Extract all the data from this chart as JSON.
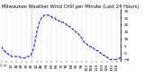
{
  "title": "Milwaukee Weather Wind Chill per Minute (Last 24 Hours)",
  "line_color": "#0000FF",
  "background_color": "#ffffff",
  "y_values": [
    5,
    4,
    3,
    2,
    2,
    1,
    1,
    0,
    0,
    -1,
    -1,
    -1,
    -2,
    -2,
    -2,
    -2,
    -2,
    -2,
    -2,
    -2,
    -2,
    -2,
    -2,
    -3,
    -3,
    -3,
    -3,
    -3,
    -3,
    -3,
    -2,
    -2,
    -2,
    -2,
    -2,
    -1,
    0,
    1,
    3,
    5,
    8,
    11,
    14,
    17,
    19,
    21,
    23,
    24,
    25,
    26,
    26,
    27,
    27,
    27,
    27,
    27,
    27,
    27,
    26,
    26,
    26,
    25,
    25,
    25,
    25,
    24,
    24,
    24,
    23,
    23,
    23,
    22,
    22,
    22,
    22,
    21,
    21,
    21,
    20,
    20,
    20,
    19,
    19,
    18,
    18,
    17,
    17,
    16,
    16,
    15,
    15,
    14,
    14,
    13,
    12,
    12,
    11,
    10,
    9,
    8,
    8,
    7,
    7,
    6,
    6,
    5,
    5,
    5,
    4,
    4,
    4,
    3,
    3,
    3,
    2,
    2,
    2,
    1,
    1,
    0,
    0,
    -1,
    -1,
    -1,
    -2,
    -2,
    -2,
    -3,
    -3,
    -4,
    -4,
    -4,
    -4,
    -4,
    -4,
    -4,
    -4,
    -4,
    -4,
    -4,
    -4,
    -3,
    -3,
    -2
  ],
  "ylim": [
    -5,
    31
  ],
  "yticks": [
    30,
    25,
    20,
    15,
    10,
    5,
    0,
    -4
  ],
  "title_fontsize": 3.8,
  "tick_fontsize": 3.2,
  "line_width": 0.7,
  "linestyle": "--",
  "vline_x": 36,
  "vline_color": "#aaaaaa",
  "grid_color": "#cccccc",
  "n_xticks": 24
}
